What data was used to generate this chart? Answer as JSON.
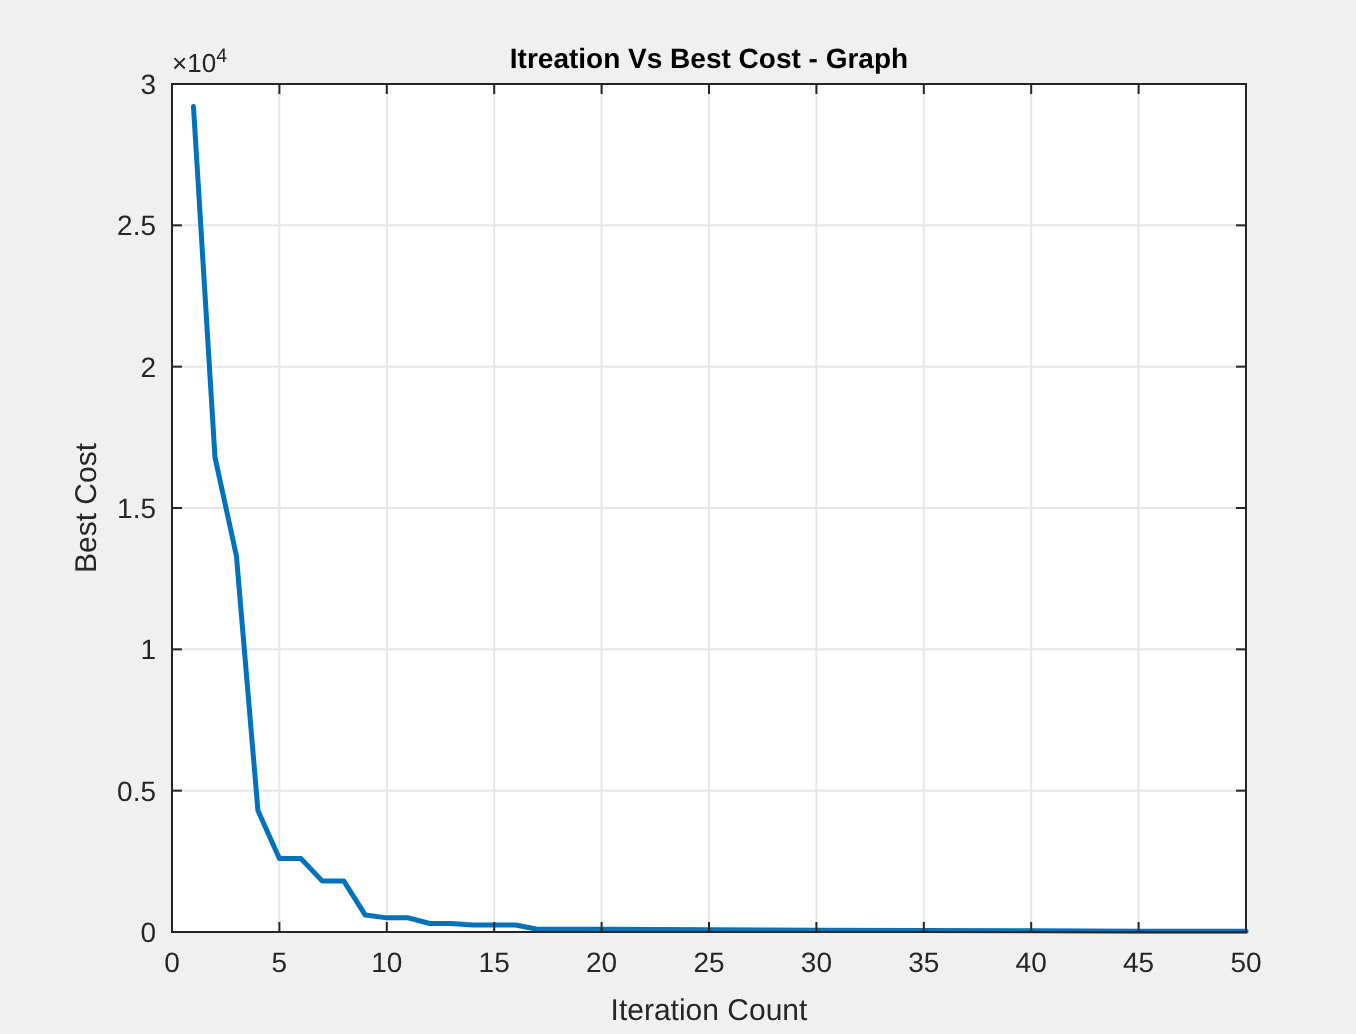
{
  "chart_data": {
    "type": "line",
    "title": "Itreation Vs Best Cost - Graph",
    "xlabel": "Iteration Count",
    "ylabel": "Best Cost",
    "annotations": [
      "×10$^{4}$"
    ],
    "x": [
      1,
      2,
      3,
      4,
      5,
      6,
      7,
      8,
      9,
      10,
      11,
      12,
      13,
      14,
      15,
      16,
      17,
      20,
      25,
      30,
      35,
      40,
      45,
      50
    ],
    "series": [
      {
        "color": "#0072bd",
        "values": [
          2.92,
          1.68,
          1.33,
          0.43,
          0.26,
          0.26,
          0.18,
          0.18,
          0.06,
          0.05,
          0.05,
          0.03,
          0.03,
          0.025,
          0.025,
          0.025,
          0.01,
          0.01,
          0.008,
          0.006,
          0.005,
          0.004,
          0.003,
          0.003
        ]
      }
    ],
    "xlim": [
      0,
      50
    ],
    "xticks": [
      0,
      5,
      10,
      15,
      20,
      25,
      30,
      35,
      40,
      45,
      50
    ],
    "ylim": [
      0,
      3
    ],
    "yticks": [
      0,
      0.5,
      1,
      1.5,
      2,
      2.5,
      3
    ],
    "grid": true,
    "marker": "none",
    "line_style": "solid"
  }
}
